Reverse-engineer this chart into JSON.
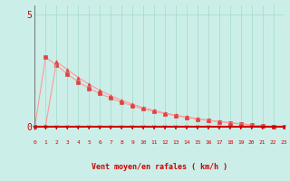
{
  "bg_color": "#cceee8",
  "line1_x": [
    0,
    1,
    2,
    3,
    4,
    5,
    6,
    7,
    8,
    9,
    10,
    11,
    12,
    13,
    14,
    15,
    16,
    17,
    18,
    19,
    20,
    21,
    22,
    23
  ],
  "line1_y": [
    0.0,
    3.1,
    2.75,
    2.35,
    2.0,
    1.72,
    1.48,
    1.28,
    1.1,
    0.94,
    0.81,
    0.69,
    0.59,
    0.5,
    0.42,
    0.35,
    0.29,
    0.23,
    0.18,
    0.13,
    0.08,
    0.04,
    0.01,
    0.0
  ],
  "line2_x": [
    0,
    1,
    2,
    3,
    4,
    5,
    6,
    7,
    8,
    9,
    10,
    11,
    12,
    13,
    14,
    15,
    16,
    17,
    18,
    19,
    20,
    21,
    22,
    23
  ],
  "line2_y": [
    0.0,
    0.05,
    2.9,
    2.55,
    2.2,
    1.9,
    1.63,
    1.39,
    1.19,
    1.01,
    0.86,
    0.73,
    0.62,
    0.52,
    0.44,
    0.37,
    0.3,
    0.24,
    0.19,
    0.14,
    0.09,
    0.05,
    0.02,
    0.0
  ],
  "line_color": "#ff9999",
  "marker_color": "#dd4444",
  "axis_bottom_color": "#cc0000",
  "axis_left_color": "#666666",
  "grid_color": "#aaddcc",
  "tick_arrow_color": "#cc0000",
  "xlabel_text": "Vent moyen/en rafales ( km/h )",
  "xlabel_color": "#cc0000",
  "tick_label_color": "#cc0000",
  "ytick_vals": [
    0,
    5
  ],
  "xtick_vals": [
    0,
    1,
    2,
    3,
    4,
    5,
    6,
    7,
    8,
    9,
    10,
    11,
    12,
    13,
    14,
    15,
    16,
    17,
    18,
    19,
    20,
    21,
    22,
    23
  ],
  "xlim": [
    0,
    23
  ],
  "ylim": [
    0,
    5
  ],
  "marker_size": 2.5,
  "line_width": 0.8
}
